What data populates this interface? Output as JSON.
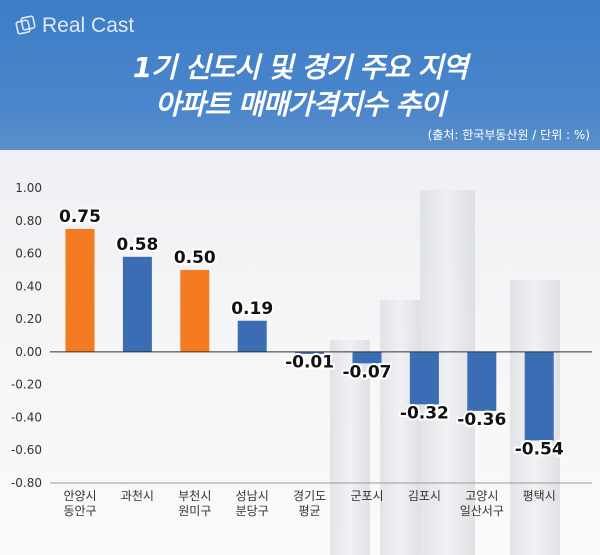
{
  "brand": "Real Cast",
  "header": {
    "title_line1": "1기 신도시 및 경기 주요 지역",
    "title_line2": "아파트 매매가격지수 추이",
    "source": "(출처: 한국부동산원 / 단위 : %)"
  },
  "chart_data": {
    "type": "bar",
    "title": "1기 신도시 및 경기 주요 지역 아파트 매매가격지수 추이",
    "unit": "%",
    "categories": [
      [
        "안양시",
        "동안구"
      ],
      [
        "과천시"
      ],
      [
        "부천시",
        "원미구"
      ],
      [
        "성남시",
        "분당구"
      ],
      [
        "경기도",
        "평균"
      ],
      [
        "군포시"
      ],
      [
        "김포시"
      ],
      [
        "고양시",
        "일산서구"
      ],
      [
        "평택시"
      ]
    ],
    "values": [
      0.75,
      0.58,
      0.5,
      0.19,
      -0.01,
      -0.07,
      -0.32,
      -0.36,
      -0.54
    ],
    "value_labels": [
      "0.75",
      "0.58",
      "0.50",
      "0.19",
      "-0.01",
      "-0.07",
      "-0.32",
      "-0.36",
      "-0.54"
    ],
    "highlight": [
      true,
      false,
      true,
      false,
      false,
      false,
      false,
      false,
      false
    ],
    "ylim": [
      -0.8,
      1.0
    ],
    "yticks": [
      "1.00",
      "0.80",
      "0.60",
      "0.40",
      "0.20",
      "0.00",
      "-0.20",
      "-0.40",
      "-0.60",
      "-0.80"
    ],
    "grid": false,
    "colors": {
      "highlight": "#f47b20",
      "default": "#3a6db3"
    }
  }
}
